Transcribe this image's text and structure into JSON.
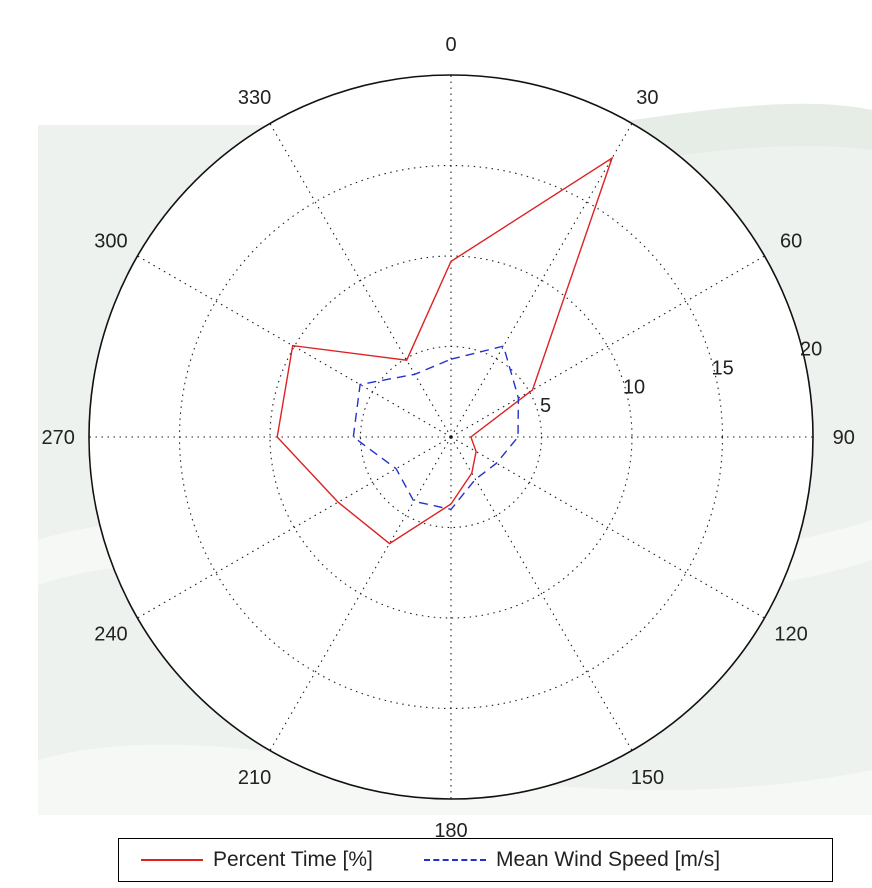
{
  "chart_data": {
    "type": "polar-line",
    "angle_ticks": [
      "0",
      "30",
      "60",
      "90",
      "120",
      "150",
      "180",
      "210",
      "240",
      "270",
      "300",
      "330"
    ],
    "angle_tick_values": [
      0,
      30,
      60,
      90,
      120,
      150,
      180,
      210,
      240,
      270,
      300,
      330
    ],
    "radial_ticks": [
      "5",
      "10",
      "15",
      "20"
    ],
    "radial_tick_values": [
      5,
      10,
      15,
      20
    ],
    "rlim": [
      0,
      20
    ],
    "direction": "clockwise",
    "zero_at": "top",
    "grid": true,
    "legend_position": "bottom",
    "series": [
      {
        "name": "Percent Time [%]",
        "color": "#dd2222",
        "dash": "solid",
        "theta": [
          0,
          30,
          60,
          90,
          120,
          150,
          180,
          210,
          240,
          270,
          300,
          330
        ],
        "r": [
          9.7,
          17.8,
          5.2,
          1.1,
          1.6,
          2.3,
          3.7,
          6.8,
          7.2,
          9.6,
          10.1,
          4.9
        ]
      },
      {
        "name": "Mean Wind Speed [m/s]",
        "color": "#2233cc",
        "dash": "dashed",
        "theta": [
          0,
          30,
          60,
          90,
          120,
          150,
          180,
          210,
          240,
          270,
          300,
          330
        ],
        "r": [
          4.3,
          5.8,
          4.3,
          3.7,
          2.9,
          2.7,
          4.0,
          4.1,
          3.5,
          5.4,
          5.8,
          4.0
        ]
      }
    ]
  },
  "legend": {
    "percent_label": "Percent Time [%]",
    "speed_label": "Mean Wind Speed [m/s]"
  },
  "colors": {
    "percent_line": "#dd2222",
    "speed_line": "#2233cc",
    "background_band": "#eef2ee"
  }
}
